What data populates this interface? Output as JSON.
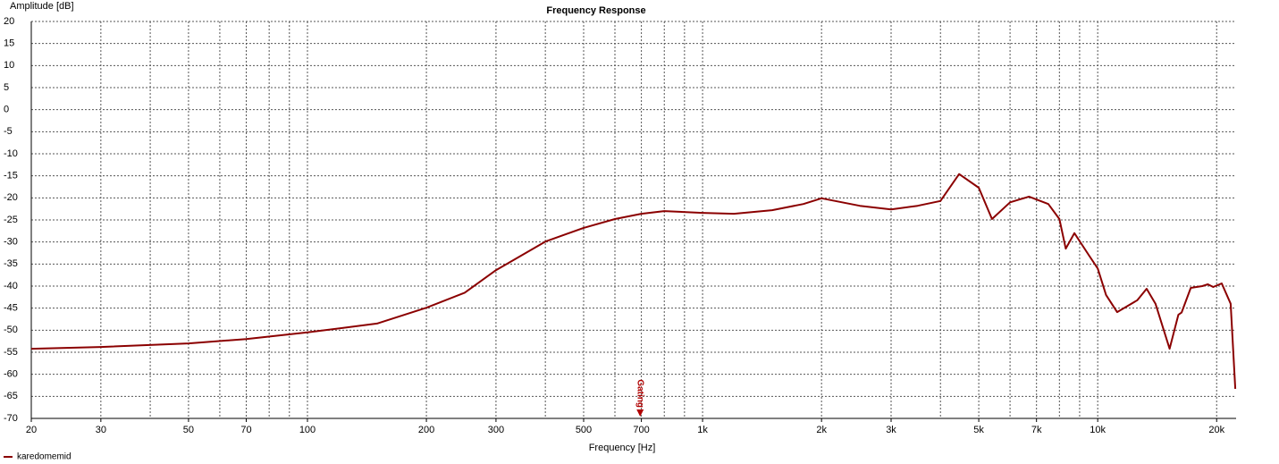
{
  "chart_data": {
    "type": "line",
    "title": "Frequency Response",
    "xlabel": "Frequency [Hz]",
    "ylabel": "Amplitude [dB]",
    "xscale": "log",
    "grid": true,
    "xlim": [
      20,
      22400
    ],
    "ylim": [
      -70,
      20
    ],
    "xticks": [
      20,
      30,
      50,
      70,
      100,
      200,
      300,
      500,
      700,
      {
        "value": 1000,
        "label": "1k"
      },
      {
        "value": 2000,
        "label": "2k"
      },
      {
        "value": 3000,
        "label": "3k"
      },
      {
        "value": 5000,
        "label": "5k"
      },
      {
        "value": 7000,
        "label": "7k"
      },
      {
        "value": 10000,
        "label": "10k"
      },
      {
        "value": 20000,
        "label": "20k"
      }
    ],
    "xminor": [
      40,
      60,
      80,
      90,
      400,
      600,
      800,
      900,
      4000,
      6000,
      8000,
      9000
    ],
    "yticks": [
      20,
      15,
      10,
      5,
      0,
      -5,
      -10,
      -15,
      -20,
      -25,
      -30,
      -35,
      -40,
      -45,
      -50,
      -55,
      -60,
      -65,
      -70
    ],
    "marker": {
      "label": "Gating",
      "x": 695,
      "color": "#b00000"
    },
    "legend": "bottom-left",
    "x": [
      20,
      30,
      50,
      70,
      100,
      150,
      200,
      250,
      300,
      400,
      500,
      600,
      700,
      800,
      1000,
      1200,
      1500,
      1800,
      2000,
      2500,
      3000,
      3500,
      4000,
      4460,
      5000,
      5400,
      6000,
      6700,
      7500,
      8000,
      8300,
      8730,
      9500,
      10000,
      10500,
      11200,
      12600,
      13300,
      14000,
      15200,
      16000,
      16300,
      17200,
      18400,
      19000,
      19600,
      20600,
      21700,
      22300
    ],
    "series": [
      {
        "name": "karedomemid",
        "color": "#8b0000",
        "values": [
          -54.2,
          -53.8,
          -53.0,
          -52.0,
          -50.5,
          -48.5,
          -44.9,
          -41.5,
          -36.4,
          -29.9,
          -26.8,
          -24.8,
          -23.6,
          -23.0,
          -23.4,
          -23.6,
          -22.8,
          -21.4,
          -20.1,
          -21.8,
          -22.6,
          -21.8,
          -20.7,
          -14.6,
          -17.7,
          -24.8,
          -21.0,
          -19.7,
          -21.4,
          -24.8,
          -31.5,
          -28.0,
          -33.0,
          -36.0,
          -42.0,
          -45.9,
          -43.2,
          -40.6,
          -44.0,
          -54.2,
          -46.5,
          -46.0,
          -40.4,
          -40.0,
          -39.6,
          -40.2,
          -39.4,
          -44.0,
          -63.3
        ]
      }
    ]
  }
}
